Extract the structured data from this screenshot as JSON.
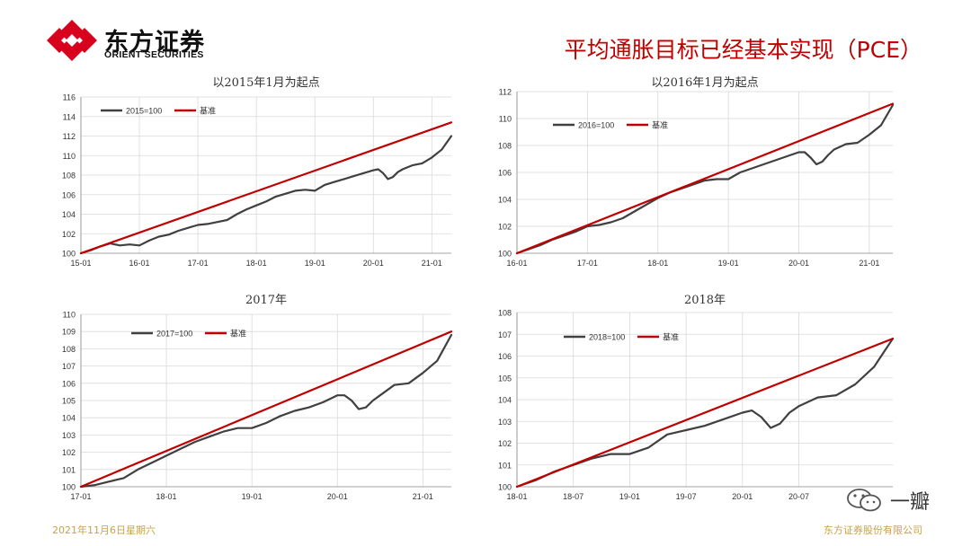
{
  "header": {
    "brand_cn": "东方证券",
    "brand_en": "ORIENT SECURITIES",
    "title": "平均通胀目标已经基本实现（PCE）"
  },
  "footer": {
    "date": "2021年11月6日星期六",
    "company": "东方证券股份有限公司"
  },
  "watermark": {
    "text": "一瓣"
  },
  "colors": {
    "series": "#404040",
    "baseline": "#c00000",
    "grid": "#d9d9d9",
    "axis_text": "#333333",
    "brand_red": "#d7001d"
  },
  "chart_data": [
    {
      "type": "line",
      "title": "以2015年1月为起点",
      "legend": [
        "2015=100",
        "基准"
      ],
      "legend_position": "top-left",
      "x_range": [
        0,
        76
      ],
      "x_ticks": [
        0,
        12,
        24,
        36,
        48,
        60,
        72
      ],
      "x_tick_labels": [
        "15-01",
        "16-01",
        "17-01",
        "18-01",
        "19-01",
        "20-01",
        "21-01"
      ],
      "ylim": [
        100,
        116
      ],
      "y_ticks": [
        100,
        102,
        104,
        106,
        108,
        110,
        112,
        114,
        116
      ],
      "series": [
        {
          "name": "2015=100",
          "x": [
            0,
            2,
            4,
            6,
            8,
            10,
            12,
            14,
            16,
            18,
            20,
            22,
            24,
            26,
            28,
            30,
            32,
            34,
            36,
            38,
            40,
            42,
            44,
            46,
            48,
            50,
            52,
            54,
            56,
            58,
            60,
            61,
            62,
            63,
            64,
            65,
            66,
            68,
            70,
            72,
            74,
            76
          ],
          "values": [
            100.0,
            100.3,
            100.7,
            101.0,
            100.8,
            100.9,
            100.8,
            101.3,
            101.7,
            101.9,
            102.3,
            102.6,
            102.9,
            103.0,
            103.2,
            103.4,
            104.0,
            104.5,
            104.9,
            105.3,
            105.8,
            106.1,
            106.4,
            106.5,
            106.4,
            107.0,
            107.3,
            107.6,
            107.9,
            108.2,
            108.5,
            108.6,
            108.2,
            107.6,
            107.8,
            108.3,
            108.6,
            109.0,
            109.2,
            109.8,
            110.6,
            112.0
          ]
        },
        {
          "name": "基准",
          "x": [
            0,
            76
          ],
          "values": [
            100.0,
            113.4
          ]
        }
      ]
    },
    {
      "type": "line",
      "title": "以2016年1月为起点",
      "legend": [
        "2016=100",
        "基准"
      ],
      "legend_position": "top-left",
      "x_range": [
        0,
        64
      ],
      "x_ticks": [
        0,
        12,
        24,
        36,
        48,
        60
      ],
      "x_tick_labels": [
        "16-01",
        "17-01",
        "18-01",
        "19-01",
        "20-01",
        "21-01"
      ],
      "ylim": [
        100,
        112
      ],
      "y_ticks": [
        100,
        102,
        104,
        106,
        108,
        110,
        112
      ],
      "series": [
        {
          "name": "2016=100",
          "x": [
            0,
            2,
            4,
            6,
            8,
            10,
            12,
            14,
            16,
            18,
            20,
            22,
            24,
            26,
            28,
            30,
            32,
            34,
            36,
            38,
            40,
            42,
            44,
            46,
            48,
            49,
            50,
            51,
            52,
            53,
            54,
            56,
            58,
            60,
            62,
            64
          ],
          "values": [
            100.0,
            100.3,
            100.6,
            101.0,
            101.3,
            101.6,
            102.0,
            102.1,
            102.3,
            102.6,
            103.1,
            103.6,
            104.1,
            104.5,
            104.8,
            105.1,
            105.4,
            105.5,
            105.5,
            106.0,
            106.3,
            106.6,
            106.9,
            107.2,
            107.5,
            107.5,
            107.1,
            106.6,
            106.8,
            107.3,
            107.7,
            108.1,
            108.2,
            108.8,
            109.5,
            111.0
          ]
        },
        {
          "name": "基准",
          "x": [
            0,
            64
          ],
          "values": [
            100.0,
            111.1
          ]
        }
      ]
    },
    {
      "type": "line",
      "title": "2017年",
      "legend": [
        "2017=100",
        "基准"
      ],
      "legend_position": "top-left",
      "x_range": [
        0,
        52
      ],
      "x_ticks": [
        0,
        12,
        24,
        36,
        48
      ],
      "x_tick_labels": [
        "17-01",
        "18-01",
        "19-01",
        "20-01",
        "21-01"
      ],
      "ylim": [
        100,
        110
      ],
      "y_ticks": [
        100,
        101,
        102,
        103,
        104,
        105,
        106,
        107,
        108,
        109,
        110
      ],
      "series": [
        {
          "name": "2017=100",
          "x": [
            0,
            2,
            4,
            6,
            8,
            10,
            12,
            14,
            16,
            18,
            20,
            22,
            24,
            26,
            28,
            30,
            32,
            34,
            36,
            37,
            38,
            39,
            40,
            41,
            42,
            44,
            46,
            48,
            50,
            52
          ],
          "values": [
            100.0,
            100.1,
            100.3,
            100.5,
            101.0,
            101.4,
            101.8,
            102.2,
            102.6,
            102.9,
            103.2,
            103.4,
            103.4,
            103.7,
            104.1,
            104.4,
            104.6,
            104.9,
            105.3,
            105.3,
            105.0,
            104.5,
            104.6,
            105.0,
            105.3,
            105.9,
            106.0,
            106.6,
            107.3,
            108.8
          ]
        },
        {
          "name": "基准",
          "x": [
            0,
            52
          ],
          "values": [
            100.0,
            109.0
          ]
        }
      ]
    },
    {
      "type": "line",
      "title": "2018年",
      "legend": [
        "2018=100",
        "基准"
      ],
      "legend_position": "top-left",
      "x_range": [
        0,
        40
      ],
      "x_ticks": [
        0,
        6,
        12,
        18,
        24,
        30
      ],
      "x_tick_labels": [
        "18-01",
        "18-07",
        "19-01",
        "19-07",
        "20-01",
        "20-07"
      ],
      "ylim": [
        100,
        108
      ],
      "y_ticks": [
        100,
        101,
        102,
        103,
        104,
        105,
        106,
        107,
        108
      ],
      "series": [
        {
          "name": "2018=100",
          "x": [
            0,
            2,
            4,
            6,
            8,
            10,
            12,
            14,
            16,
            18,
            20,
            22,
            24,
            25,
            26,
            27,
            28,
            29,
            30,
            32,
            34,
            36,
            38,
            40
          ],
          "values": [
            100.0,
            100.3,
            100.7,
            101.0,
            101.3,
            101.5,
            101.5,
            101.8,
            102.4,
            102.6,
            102.8,
            103.1,
            103.4,
            103.5,
            103.2,
            102.7,
            102.9,
            103.4,
            103.7,
            104.1,
            104.2,
            104.7,
            105.5,
            106.8
          ]
        },
        {
          "name": "基准",
          "x": [
            0,
            40
          ],
          "values": [
            100.0,
            106.8
          ]
        }
      ]
    }
  ]
}
